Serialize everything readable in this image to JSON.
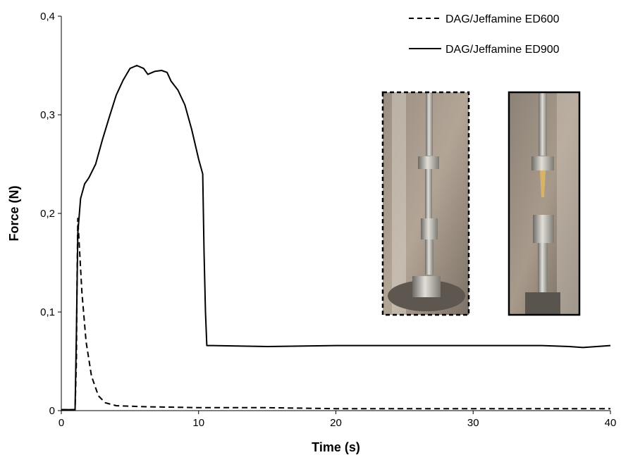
{
  "chart_data": {
    "type": "line",
    "title": "",
    "xlabel": "Time (s)",
    "ylabel": "Force (N)",
    "xlim": [
      0,
      40
    ],
    "ylim": [
      0,
      0.4
    ],
    "x_ticks": [
      "0",
      "10",
      "20",
      "30",
      "40"
    ],
    "y_ticks": [
      "0",
      "0,1",
      "0,2",
      "0,3",
      "0,4"
    ],
    "grid": false,
    "legend_position": "top-right",
    "series": [
      {
        "name": "DAG/Jeffamine ED600",
        "style": "dashed",
        "color": "#000000",
        "x": [
          0,
          0.5,
          1.0,
          1.1,
          1.15,
          1.2,
          1.3,
          1.5,
          1.8,
          2.2,
          2.7,
          3.2,
          4.0,
          6.0,
          10.0,
          15.0,
          20.0,
          25.0,
          30.0,
          35.0,
          40.0
        ],
        "y": [
          0.001,
          0.001,
          0.001,
          0.05,
          0.14,
          0.195,
          0.17,
          0.12,
          0.07,
          0.035,
          0.015,
          0.008,
          0.005,
          0.004,
          0.003,
          0.003,
          0.002,
          0.002,
          0.002,
          0.002,
          0.002
        ]
      },
      {
        "name": "DAG/Jeffamine ED900",
        "style": "solid",
        "color": "#000000",
        "x": [
          0,
          0.5,
          1.0,
          1.1,
          1.2,
          1.4,
          1.7,
          2.0,
          2.5,
          3.0,
          3.5,
          4.0,
          4.5,
          5.0,
          5.5,
          6.0,
          6.3,
          6.8,
          7.3,
          7.7,
          8.0,
          8.5,
          9.0,
          9.5,
          10.0,
          10.3,
          10.4,
          10.5,
          10.6,
          11.0,
          15.0,
          20.0,
          25.0,
          30.0,
          35.0,
          37.0,
          38.0,
          40.0
        ],
        "y": [
          0.001,
          0.001,
          0.001,
          0.08,
          0.18,
          0.215,
          0.23,
          0.236,
          0.25,
          0.275,
          0.298,
          0.32,
          0.335,
          0.347,
          0.35,
          0.347,
          0.341,
          0.344,
          0.345,
          0.343,
          0.334,
          0.325,
          0.31,
          0.285,
          0.255,
          0.24,
          0.16,
          0.1,
          0.066,
          0.066,
          0.065,
          0.066,
          0.066,
          0.066,
          0.066,
          0.065,
          0.064,
          0.066
        ]
      }
    ]
  }
}
